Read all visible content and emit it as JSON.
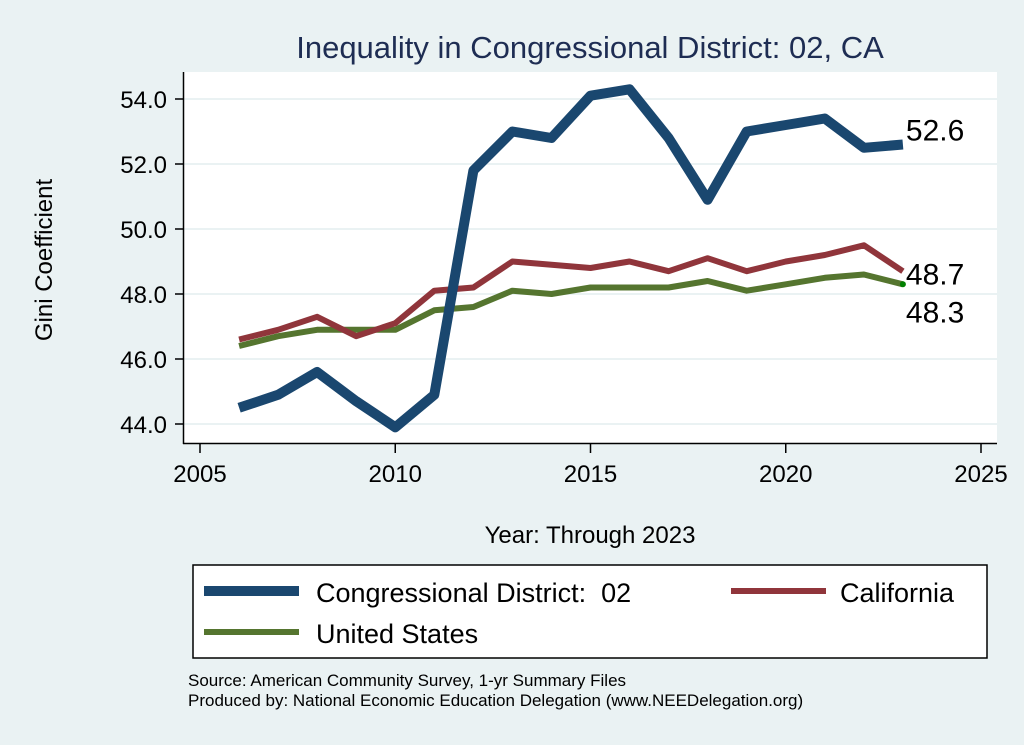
{
  "chart_data": {
    "type": "line",
    "title": "Inequality in Congressional District:  02, CA",
    "xlabel": "Year: Through 2023",
    "ylabel": "Gini Coefficient",
    "xlim": [
      2005,
      2025
    ],
    "ylim": [
      44.0,
      54.0
    ],
    "x_ticks": [
      2005,
      2010,
      2015,
      2020,
      2025
    ],
    "x_tick_labels": [
      "2005",
      "2010",
      "2015",
      "2020",
      "2025"
    ],
    "y_ticks": [
      44.0,
      46.0,
      48.0,
      50.0,
      52.0,
      54.0
    ],
    "y_tick_labels": [
      "44.0",
      "46.0",
      "48.0",
      "50.0",
      "52.0",
      "54.0"
    ],
    "grid": "horizontal",
    "legend_position": "bottom",
    "x": [
      2006,
      2007,
      2008,
      2009,
      2010,
      2011,
      2012,
      2013,
      2014,
      2015,
      2016,
      2017,
      2018,
      2019,
      2020,
      2021,
      2022,
      2023
    ],
    "series": [
      {
        "name": "Congressional District:  02",
        "color": "#1a476f",
        "values": [
          44.5,
          44.9,
          45.6,
          44.7,
          43.9,
          44.9,
          51.8,
          53.0,
          52.8,
          54.1,
          54.3,
          52.8,
          50.9,
          53.0,
          53.2,
          53.4,
          52.5,
          52.6
        ],
        "end_label": "52.6"
      },
      {
        "name": "California",
        "color": "#90353b",
        "values": [
          46.6,
          46.9,
          47.3,
          46.7,
          47.1,
          48.1,
          48.2,
          49.0,
          48.9,
          48.8,
          49.0,
          48.7,
          49.1,
          48.7,
          49.0,
          49.2,
          49.5,
          48.7
        ],
        "end_label": "48.7"
      },
      {
        "name": "United States",
        "color": "#55752f",
        "values": [
          46.4,
          46.7,
          46.9,
          46.9,
          46.9,
          47.5,
          47.6,
          48.1,
          48.0,
          48.2,
          48.2,
          48.2,
          48.4,
          48.1,
          48.3,
          48.5,
          48.6,
          48.3
        ],
        "end_label": "48.3"
      }
    ],
    "notes": [
      "Source: American Community Survey, 1-yr Summary Files",
      "Produced by: National Economic Education Delegation (www.NEEDelegation.org)"
    ]
  },
  "colors": {
    "background": "#eaf2f3",
    "plot_background": "#ffffff",
    "grid": "#eaf2f3",
    "title": "#1e2d53"
  }
}
